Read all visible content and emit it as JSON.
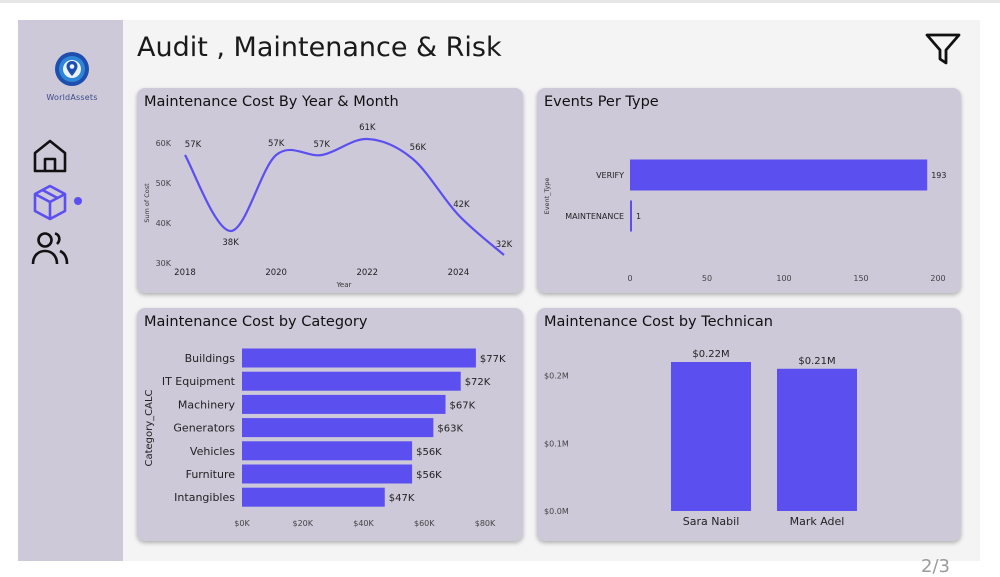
{
  "app": {
    "logo_name": "WorldAssets",
    "title": "Audit , Maintenance & Risk",
    "page_indicator": "2/3"
  },
  "colors": {
    "bar": "#5b4ff0",
    "line": "#5b4ff0",
    "panel": "#cdc9d9",
    "sidebar": "#cdc9d9",
    "accent": "#5b4ff0"
  },
  "sidebar": {
    "items": [
      {
        "icon": "home-icon",
        "active": false
      },
      {
        "icon": "box-icon",
        "active": true
      },
      {
        "icon": "users-icon",
        "active": false
      }
    ]
  },
  "header": {
    "filter_icon": "filter-icon"
  },
  "charts": {
    "yearmonth": {
      "title": "Maintenance Cost By Year & Month",
      "chart_data": {
        "type": "line",
        "title": "Maintenance Cost By Year & Month",
        "xlabel": "Year",
        "ylabel": "Sum of Cost",
        "x": [
          2018,
          2019,
          2020,
          2021,
          2022,
          2023,
          2024,
          2025
        ],
        "values": [
          57,
          38,
          57,
          57,
          61,
          56,
          42,
          32
        ],
        "value_labels": [
          "57K",
          "38K",
          "57K",
          "57K",
          "61K",
          "56K",
          "42K",
          "32K"
        ],
        "xticks": [
          "2018",
          "2020",
          "2022",
          "2024"
        ],
        "yticks": [
          "30K",
          "40K",
          "50K",
          "60K"
        ],
        "ylim": [
          30,
          60
        ]
      }
    },
    "events": {
      "title": "Events Per Type",
      "chart_data": {
        "type": "bar",
        "orientation": "horizontal",
        "title": "Events Per Type",
        "ylabel": "Event_Type",
        "categories": [
          "VERIFY",
          "MAINTENANCE"
        ],
        "values": [
          193,
          1
        ],
        "value_labels": [
          "193",
          "1"
        ],
        "xticks": [
          "0",
          "50",
          "100",
          "150",
          "200"
        ],
        "xlim": [
          0,
          200
        ]
      }
    },
    "category": {
      "title": "Maintenance Cost by Category",
      "chart_data": {
        "type": "bar",
        "orientation": "horizontal",
        "title": "Maintenance Cost by Category",
        "ylabel": "Category_CALC",
        "categories": [
          "Buildings",
          "IT Equipment",
          "Machinery",
          "Generators",
          "Vehicles",
          "Furniture",
          "Intangibles"
        ],
        "values": [
          77,
          72,
          67,
          63,
          56,
          56,
          47
        ],
        "value_labels": [
          "$77K",
          "$72K",
          "$67K",
          "$63K",
          "$56K",
          "$56K",
          "$47K"
        ],
        "xticks": [
          "$0K",
          "$20K",
          "$40K",
          "$60K",
          "$80K"
        ],
        "xlim": [
          0,
          80
        ]
      }
    },
    "technician": {
      "title": "Maintenance Cost by Technican",
      "chart_data": {
        "type": "bar",
        "title": "Maintenance Cost by Technican",
        "categories": [
          "Sara Nabil",
          "Mark Adel"
        ],
        "values": [
          0.22,
          0.21
        ],
        "value_labels": [
          "$0.22M",
          "$0.21M"
        ],
        "yticks": [
          "$0.0M",
          "$0.1M",
          "$0.2M"
        ],
        "ylim": [
          0,
          0.22
        ]
      }
    }
  }
}
